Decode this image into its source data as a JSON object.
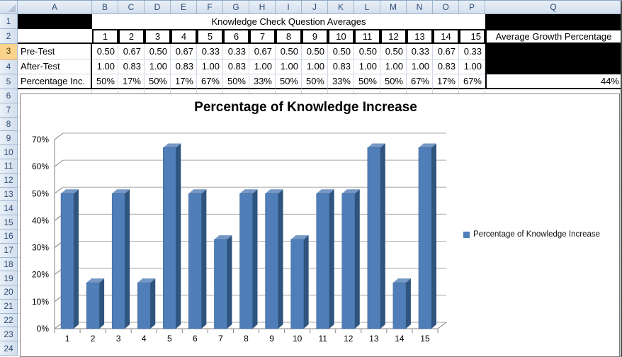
{
  "app": {
    "name": "spreadsheet"
  },
  "sheet": {
    "columns": [
      "A",
      "B",
      "C",
      "D",
      "E",
      "F",
      "G",
      "H",
      "I",
      "J",
      "K",
      "L",
      "M",
      "N",
      "O",
      "P",
      "Q"
    ],
    "rows": [
      1,
      2,
      3,
      4,
      5,
      6,
      7,
      8,
      9,
      10,
      11,
      12,
      13,
      14,
      15,
      16,
      17,
      18,
      19,
      20,
      21,
      22,
      23,
      24
    ],
    "selected_row": 3
  },
  "table": {
    "merged_title": "Knowledge Check Question Averages",
    "question_numbers": [
      "1",
      "2",
      "3",
      "4",
      "5",
      "6",
      "7",
      "8",
      "9",
      "10",
      "11",
      "12",
      "13",
      "14",
      "15"
    ],
    "q_header": "Average Growth Percentage",
    "rows": [
      {
        "label": "Pre-Test",
        "values": [
          "0.50",
          "0.67",
          "0.50",
          "0.67",
          "0.33",
          "0.33",
          "0.67",
          "0.50",
          "0.50",
          "0.50",
          "0.50",
          "0.50",
          "0.33",
          "0.67",
          "0.33"
        ],
        "q": ""
      },
      {
        "label": "After-Test",
        "values": [
          "1.00",
          "0.83",
          "1.00",
          "0.83",
          "1.00",
          "0.83",
          "1.00",
          "1.00",
          "1.00",
          "0.83",
          "1.00",
          "1.00",
          "1.00",
          "0.83",
          "1.00"
        ],
        "q": ""
      },
      {
        "label": "Percentage Inc.",
        "values": [
          "50%",
          "17%",
          "50%",
          "17%",
          "67%",
          "50%",
          "33%",
          "50%",
          "50%",
          "33%",
          "50%",
          "50%",
          "67%",
          "17%",
          "67%"
        ],
        "q": "44%"
      }
    ]
  },
  "chart_data": {
    "type": "bar",
    "title": "Percentage of Knowledge Increase",
    "categories": [
      "1",
      "2",
      "3",
      "4",
      "5",
      "6",
      "7",
      "8",
      "9",
      "10",
      "11",
      "12",
      "13",
      "14",
      "15"
    ],
    "values": [
      50,
      17,
      50,
      17,
      67,
      50,
      33,
      50,
      50,
      33,
      50,
      50,
      67,
      17,
      67
    ],
    "yticks": [
      "0%",
      "10%",
      "20%",
      "30%",
      "40%",
      "50%",
      "60%",
      "70%"
    ],
    "ylim": [
      0,
      70
    ],
    "grid": true,
    "legend_label": "Percentage of Knowledge Increase",
    "legend_position": "right",
    "style": "3d-column",
    "colors": {
      "bar_front": "#4F7EB8",
      "bar_side": "#2F547E",
      "bar_top": "#7598C6",
      "gridline": "#A6A6A6",
      "axis": "#808080"
    }
  }
}
